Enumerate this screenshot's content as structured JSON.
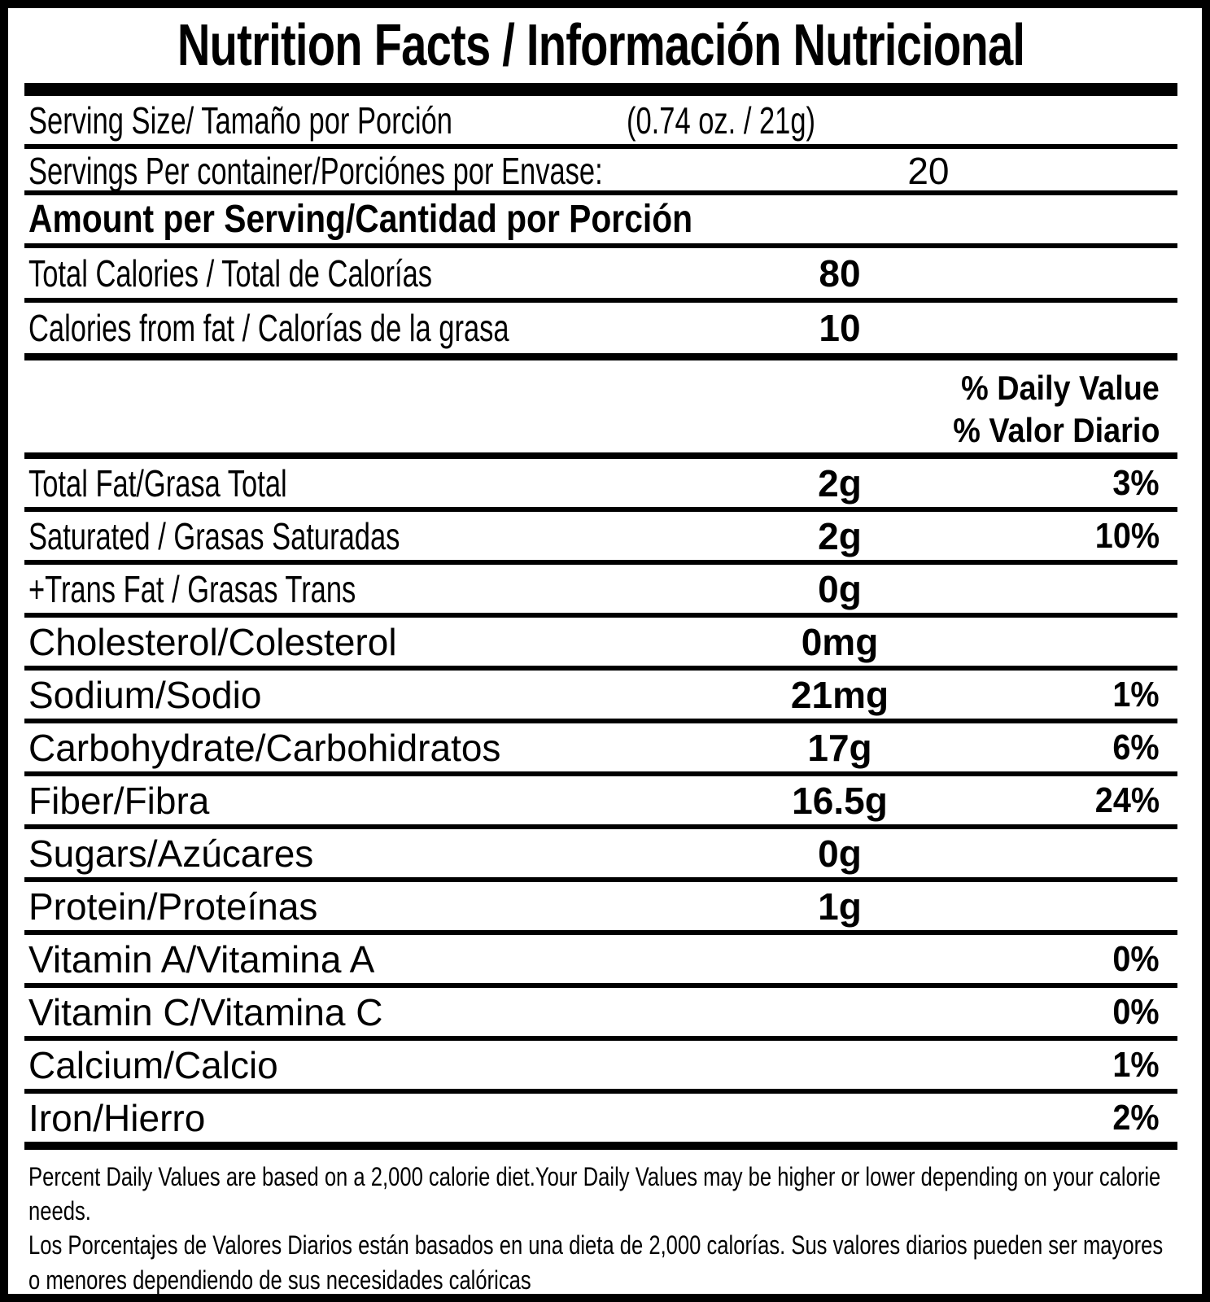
{
  "title": "Nutrition Facts / Información Nutricional",
  "serving": {
    "size_label": "Serving Size/ Tamaño por Porción",
    "size_value": "(0.74 oz. / 21g)",
    "per_container_label": "Servings Per container/Porciónes por Envase:",
    "per_container_value": "20"
  },
  "amount_per_serving_heading": "Amount per Serving/Cantidad por Porción",
  "calories_rows": [
    {
      "label": "Total Calories / Total de Calorías",
      "amount": "80"
    },
    {
      "label": "Calories from fat / Calorías de la grasa",
      "amount": "10"
    }
  ],
  "daily_value_header": {
    "en": "% Daily Value",
    "es": "% Valor Diario"
  },
  "nutrient_rows": [
    {
      "label": "Total Fat/Grasa Total",
      "amount": "2g",
      "daily_value": "3%"
    },
    {
      "label": "Saturated / Grasas Saturadas",
      "amount": "2g",
      "daily_value": "10%"
    },
    {
      "label": "+Trans Fat / Grasas Trans",
      "amount": "0g",
      "daily_value": ""
    },
    {
      "label": "Cholesterol/Colesterol",
      "amount": "0mg",
      "daily_value": ""
    },
    {
      "label": "Sodium/Sodio",
      "amount": "21mg",
      "daily_value": "1%"
    },
    {
      "label": "Carbohydrate/Carbohidratos",
      "amount": "17g",
      "daily_value": "6%"
    },
    {
      "label": "Fiber/Fibra",
      "amount": "16.5g",
      "daily_value": "24%"
    },
    {
      "label": "Sugars/Azúcares",
      "amount": "0g",
      "daily_value": ""
    },
    {
      "label": "Protein/Proteínas",
      "amount": "1g",
      "daily_value": ""
    },
    {
      "label": "Vitamin A/Vitamina A",
      "amount": "",
      "daily_value": "0%"
    },
    {
      "label": "Vitamin C/Vitamina C",
      "amount": "",
      "daily_value": "0%"
    },
    {
      "label": "Calcium/Calcio",
      "amount": "",
      "daily_value": "1%"
    },
    {
      "label": "Iron/Hierro",
      "amount": "",
      "daily_value": "2%"
    }
  ],
  "footnotes": {
    "en": "Percent Daily Values are based on a 2,000 calorie diet.Your Daily Values may be higher or lower depending on your calorie needs.",
    "es": "Los Porcentajes de Valores Diarios están basados en una dieta de 2,000 calorías. Sus valores diarios pueden ser mayores o menores dependiendo de sus necesidades calóricas"
  },
  "colors": {
    "ink": "#000000",
    "paper": "#ffffff"
  }
}
